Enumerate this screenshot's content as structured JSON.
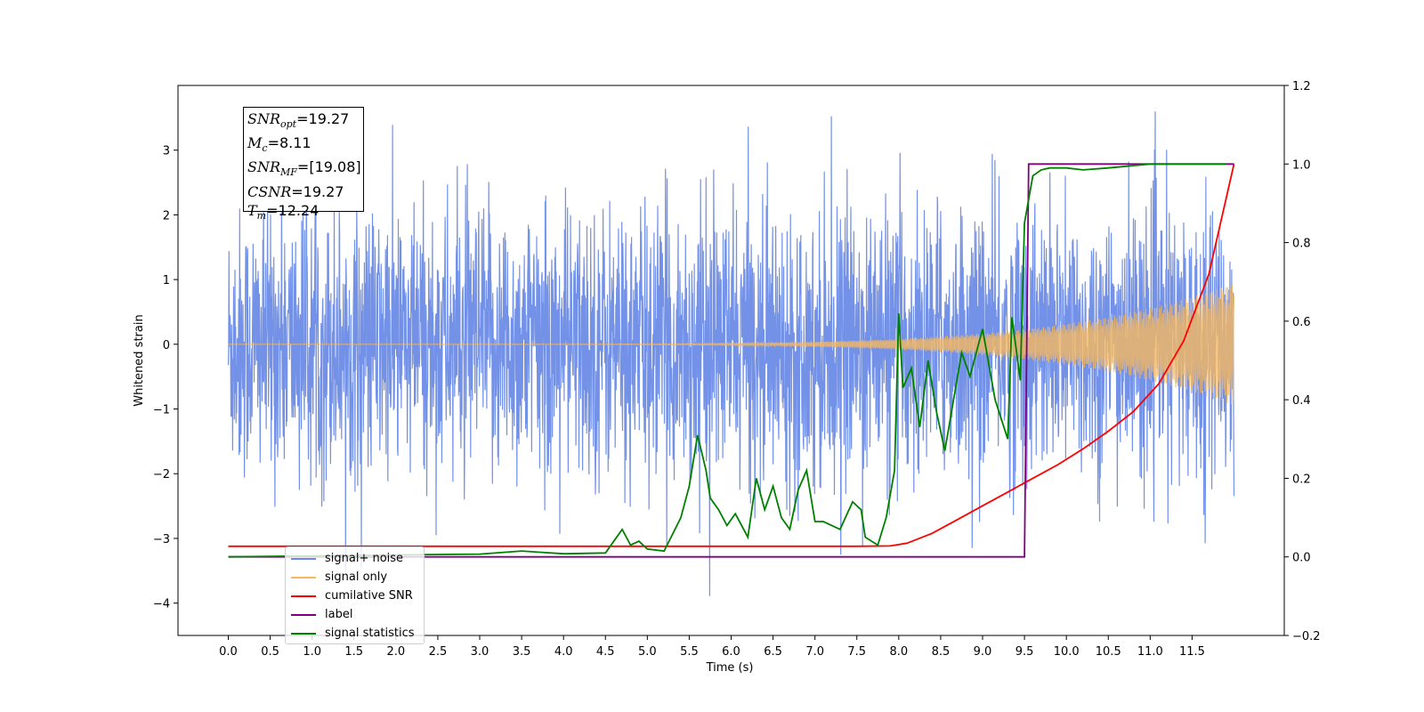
{
  "chart_data": {
    "type": "line",
    "xlabel": "Time (s)",
    "ylabel": "Whitened strain",
    "xlim": [
      -0.6,
      12.6
    ],
    "ylim": [
      -4.5,
      4.0
    ],
    "y2lim": [
      -0.2,
      1.2
    ],
    "x_ticks": [
      "0.0",
      "0.5",
      "1.0",
      "1.5",
      "2.0",
      "2.5",
      "3.0",
      "3.5",
      "4.0",
      "4.5",
      "5.0",
      "5.5",
      "6.0",
      "6.5",
      "7.0",
      "7.5",
      "8.0",
      "8.5",
      "9.0",
      "9.5",
      "10.0",
      "10.5",
      "11.0",
      "11.5"
    ],
    "y_ticks": [
      "3",
      "2",
      "1",
      "0",
      "−1",
      "−2",
      "−3",
      "−4"
    ],
    "y2_ticks": [
      "1.2",
      "1.0",
      "0.8",
      "0.6",
      "0.4",
      "0.2",
      "0.0",
      "−0.2"
    ],
    "grid": false,
    "legend_position": "bottom-left",
    "series": [
      {
        "name": "signal+ noise",
        "axis": "left",
        "color": "#6a8be6",
        "description": "whitened noise, amplitude roughly ±2.5 with spikes to 3.6 / −4.1",
        "noise_envelope": [
          -2.3,
          2.3
        ],
        "x_range": [
          0.0,
          12.0
        ]
      },
      {
        "name": "signal only",
        "axis": "left",
        "color": "#f5b860",
        "chirp_start_amplitude": 0.0,
        "chirp_end_amplitude": 0.95,
        "x_range": [
          0.0,
          12.0
        ]
      },
      {
        "name": "cumilative SNR",
        "axis": "right",
        "color": "#ff0000",
        "x": [
          0.0,
          7.5,
          7.9,
          8.1,
          8.4,
          8.7,
          9.0,
          9.3,
          9.6,
          9.9,
          10.2,
          10.5,
          10.8,
          11.1,
          11.4,
          11.7,
          12.0
        ],
        "values": [
          0.027,
          0.027,
          0.028,
          0.035,
          0.06,
          0.095,
          0.13,
          0.165,
          0.2,
          0.235,
          0.275,
          0.32,
          0.37,
          0.44,
          0.55,
          0.72,
          1.0
        ]
      },
      {
        "name": "label",
        "axis": "right",
        "color": "#800080",
        "x": [
          0.0,
          9.5,
          9.55,
          12.0
        ],
        "values": [
          0.0,
          0.0,
          1.0,
          1.0
        ]
      },
      {
        "name": "signal statistics",
        "axis": "right",
        "color": "#008000",
        "x": [
          0.0,
          2.0,
          3.0,
          3.5,
          3.7,
          4.0,
          4.5,
          4.7,
          4.8,
          4.9,
          5.0,
          5.2,
          5.4,
          5.5,
          5.6,
          5.7,
          5.75,
          5.85,
          5.95,
          6.05,
          6.2,
          6.3,
          6.4,
          6.5,
          6.6,
          6.7,
          6.8,
          6.9,
          7.0,
          7.1,
          7.3,
          7.45,
          7.55,
          7.6,
          7.75,
          7.85,
          7.95,
          8.0,
          8.05,
          8.15,
          8.25,
          8.35,
          8.45,
          8.55,
          8.75,
          8.85,
          9.0,
          9.15,
          9.3,
          9.35,
          9.45,
          9.5,
          9.6,
          9.7,
          9.8,
          10.0,
          10.2,
          10.5,
          11.0,
          11.9
        ],
        "values": [
          0.0,
          0.005,
          0.007,
          0.015,
          0.012,
          0.008,
          0.01,
          0.07,
          0.03,
          0.04,
          0.02,
          0.015,
          0.1,
          0.18,
          0.31,
          0.22,
          0.15,
          0.12,
          0.08,
          0.11,
          0.05,
          0.2,
          0.12,
          0.18,
          0.1,
          0.07,
          0.17,
          0.22,
          0.09,
          0.09,
          0.07,
          0.14,
          0.12,
          0.05,
          0.03,
          0.1,
          0.22,
          0.62,
          0.43,
          0.48,
          0.33,
          0.5,
          0.37,
          0.27,
          0.52,
          0.46,
          0.58,
          0.4,
          0.3,
          0.61,
          0.45,
          0.85,
          0.97,
          0.985,
          0.99,
          0.99,
          0.985,
          0.99,
          1.0,
          1.0
        ]
      }
    ]
  },
  "info_box": {
    "snr_opt": "=19.27",
    "mc": "=8.11",
    "snr_mf": "=[19.08]",
    "csnr": "=19.27",
    "tm": "=12.24"
  }
}
